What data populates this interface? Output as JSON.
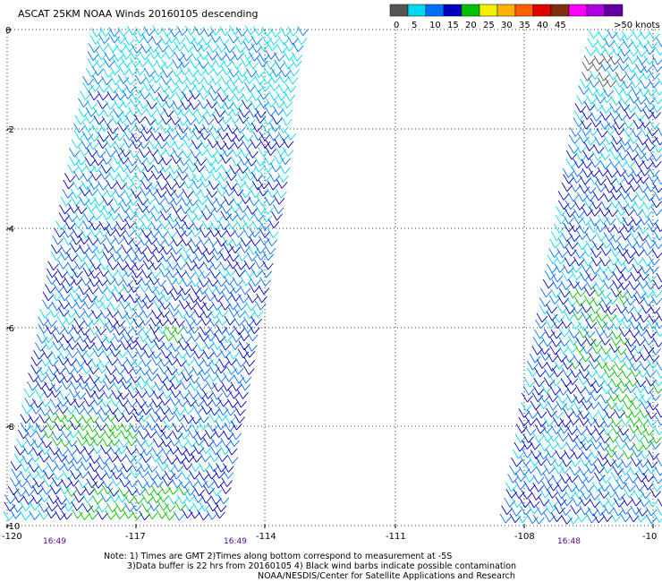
{
  "title": "ASCAT 25KM NOAA Winds 20160105 descending",
  "legend": {
    "unit_label": ">50 knots",
    "bins": [
      {
        "label": "0",
        "color": "#555555"
      },
      {
        "label": "5",
        "color": "#00d8f0"
      },
      {
        "label": "10",
        "color": "#0070ff"
      },
      {
        "label": "15",
        "color": "#0000c0"
      },
      {
        "label": "20",
        "color": "#00c000"
      },
      {
        "label": "25",
        "color": "#f0f000"
      },
      {
        "label": "30",
        "color": "#ffb000"
      },
      {
        "label": "35",
        "color": "#ff6000"
      },
      {
        "label": "40",
        "color": "#e00000"
      },
      {
        "label": "45",
        "color": "#803010"
      },
      {
        "label": "",
        "color": "#ff00ff"
      },
      {
        "label": "",
        "color": "#b000e0"
      },
      {
        "label": "",
        "color": "#6000a0"
      }
    ]
  },
  "axes": {
    "lat_labels": [
      "0",
      "-2",
      "-4",
      "-6",
      "-8",
      "-10"
    ],
    "lon_labels": [
      "-120",
      "-117",
      "-114",
      "-111",
      "-108",
      "-10"
    ]
  },
  "times": [
    "16:49",
    "16:49",
    "16:48"
  ],
  "notes": {
    "line1": "Note: 1) Times are GMT 2)Times along bottom correspond to measurement at -5S",
    "line2": "3)Data buffer is 22 hrs from 20160105 4) Black wind barbs indicate possible contamination",
    "credit": "NOAA/NESDIS/Center for Satellite Applications and Research"
  }
}
